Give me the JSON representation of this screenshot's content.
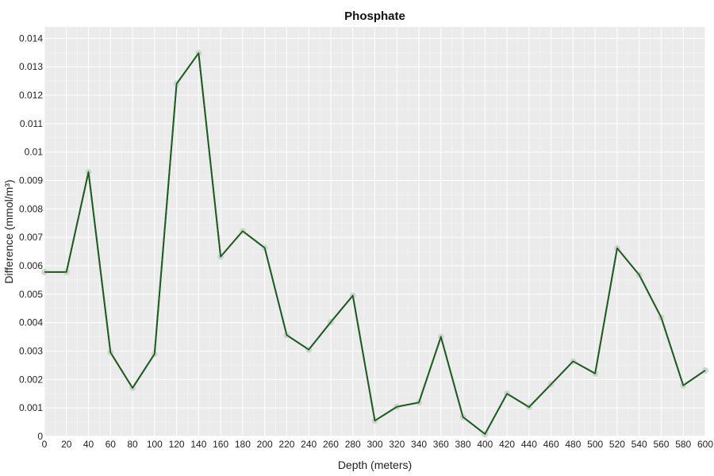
{
  "chart_data": {
    "type": "line",
    "title": "Phosphate",
    "xlabel": "Depth (meters)",
    "ylabel": "Difference (mmol/m³)",
    "x": [
      0,
      20,
      40,
      60,
      80,
      100,
      120,
      140,
      160,
      180,
      200,
      220,
      240,
      260,
      280,
      300,
      320,
      340,
      360,
      380,
      400,
      420,
      440,
      460,
      480,
      500,
      520,
      540,
      560,
      580,
      600
    ],
    "series": [
      {
        "values": [
          0.00578,
          0.00578,
          0.0093,
          0.00295,
          0.0017,
          0.0029,
          0.0124,
          0.01348,
          0.00632,
          0.00722,
          0.00663,
          0.00356,
          0.00305,
          0.00402,
          0.00495,
          0.00055,
          0.00104,
          0.00119,
          0.0035,
          0.00068,
          8e-05,
          0.0015,
          0.00103,
          0.00183,
          0.00264,
          0.00221,
          0.00662,
          0.00568,
          0.00418,
          0.00179,
          0.00232
        ]
      }
    ],
    "xlim": [
      0,
      600
    ],
    "ylim": [
      0,
      0.0144
    ],
    "xticks": [
      "0",
      "20",
      "40",
      "60",
      "80",
      "100",
      "120",
      "140",
      "160",
      "180",
      "200",
      "220",
      "240",
      "260",
      "280",
      "300",
      "320",
      "340",
      "360",
      "380",
      "400",
      "420",
      "440",
      "460",
      "480",
      "500",
      "520",
      "540",
      "560",
      "580",
      "600"
    ],
    "yticks": [
      "0",
      "0.001",
      "0.002",
      "0.003",
      "0.004",
      "0.005",
      "0.006",
      "0.007",
      "0.008",
      "0.009",
      "0.01",
      "0.011",
      "0.012",
      "0.013",
      "0.014"
    ],
    "grid": true,
    "colors": {
      "line": "#1b5e20",
      "marker": "#c8d6c8",
      "plot_background": "#ebebeb"
    }
  }
}
